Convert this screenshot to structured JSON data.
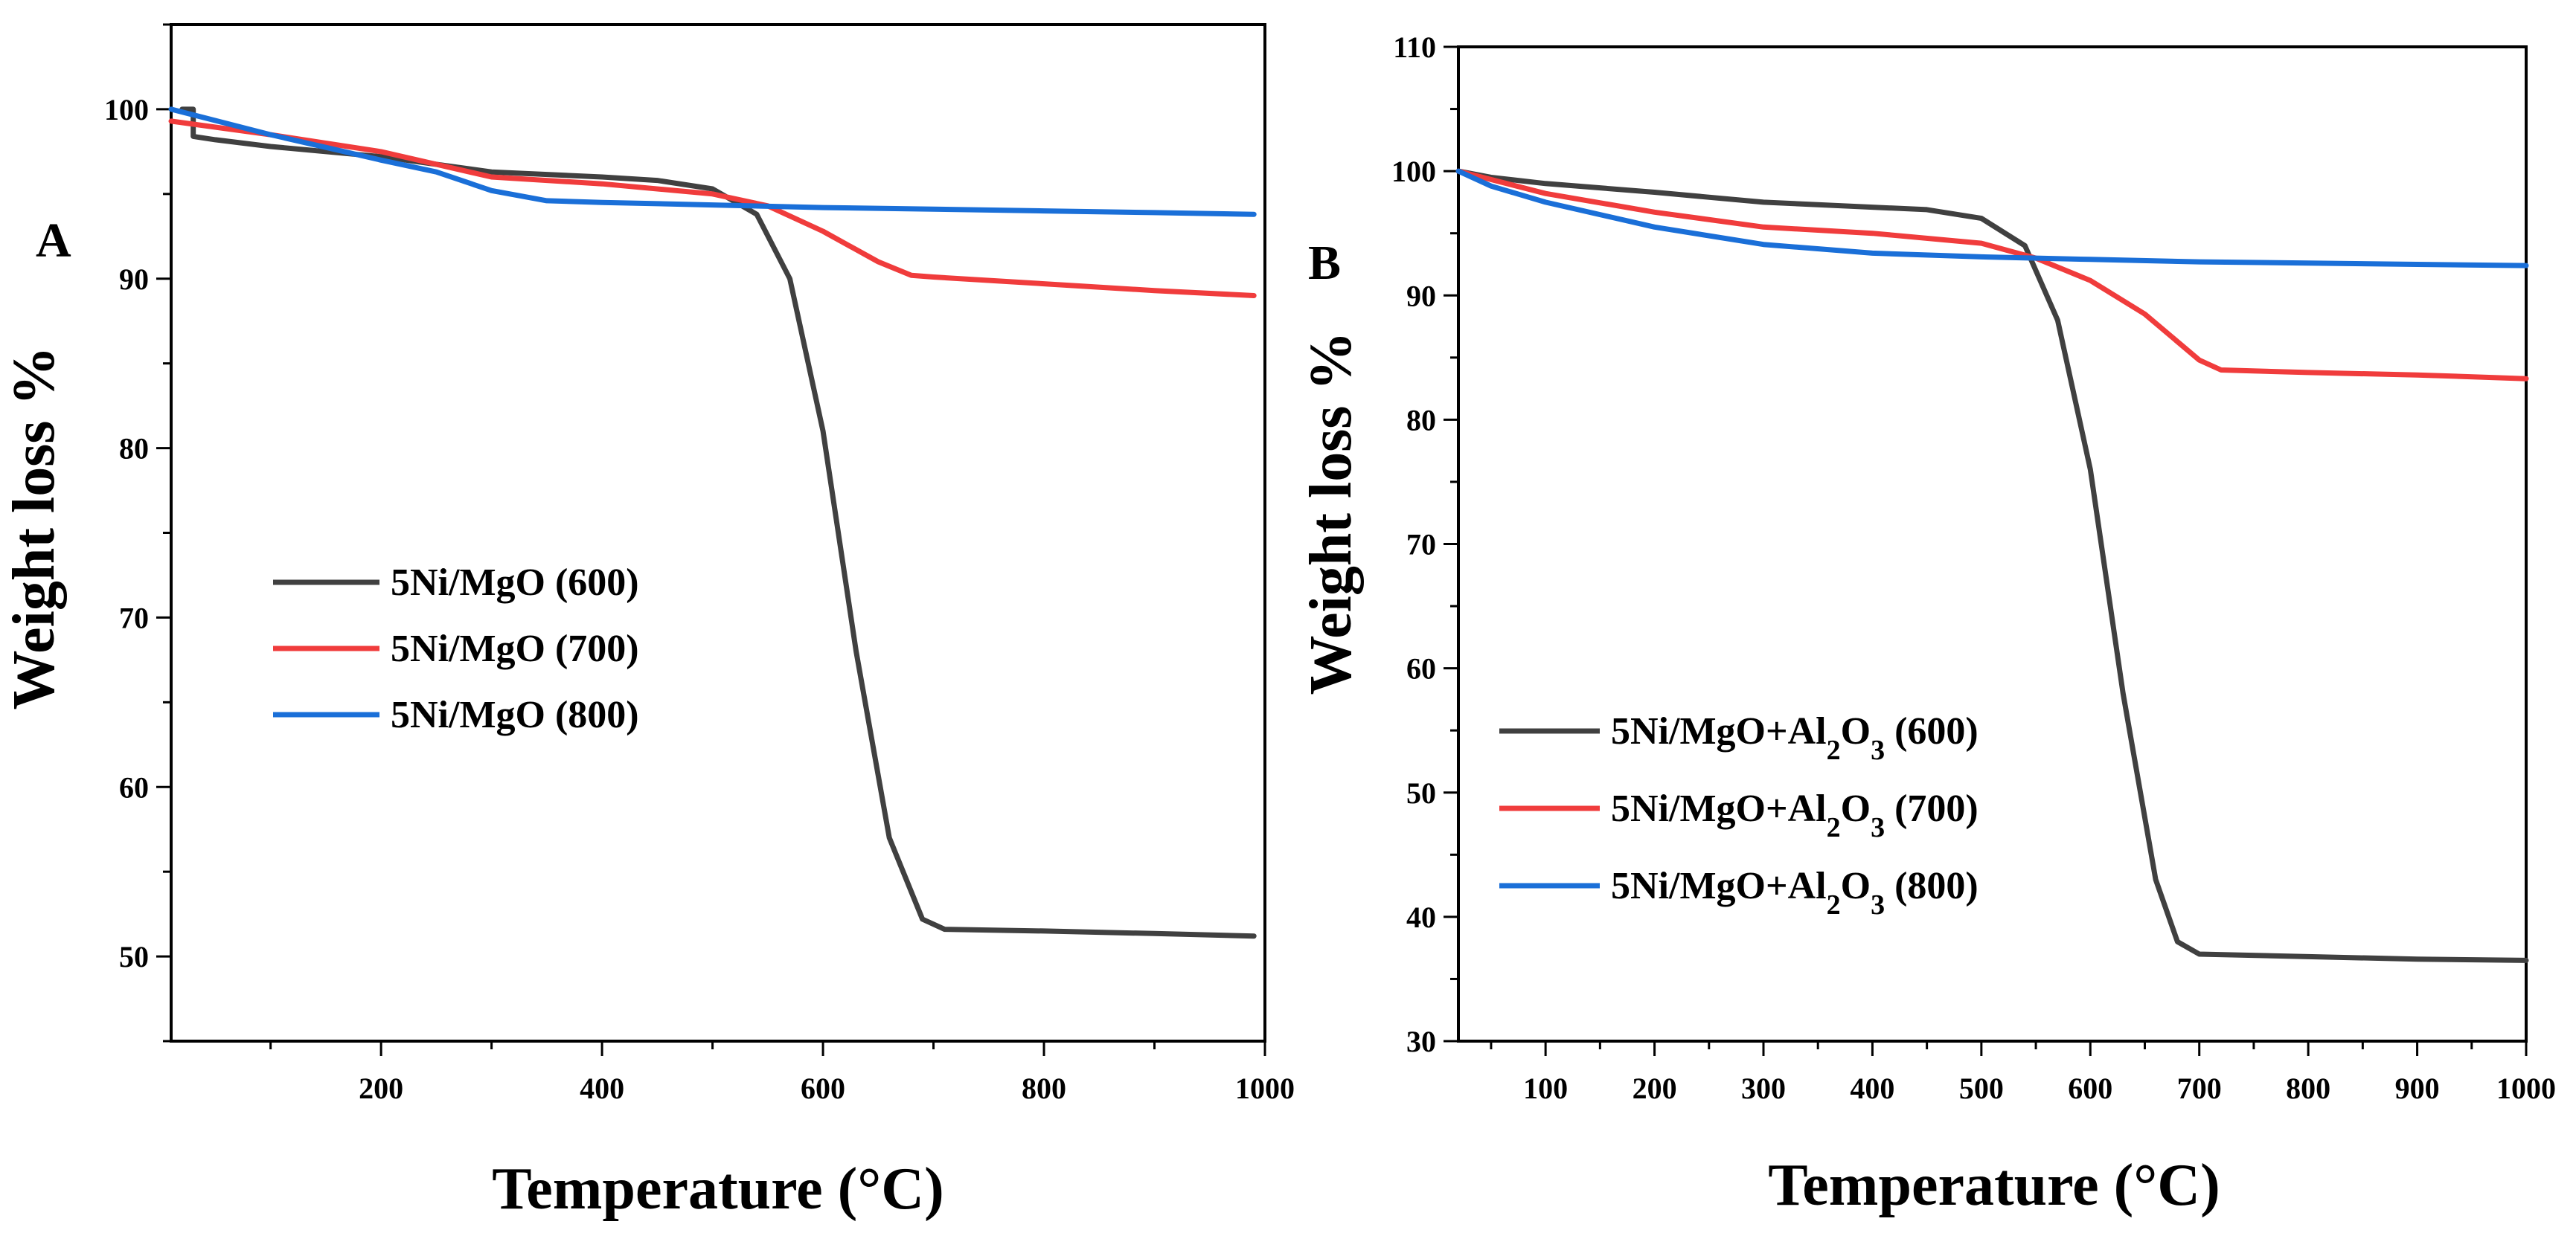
{
  "chart_data": [
    {
      "type": "line",
      "panel_label": "A",
      "xlabel": "Temperature (°C)",
      "ylabel": "Weight loss %",
      "xlim": [
        10,
        1000
      ],
      "ylim": [
        45,
        105
      ],
      "xticks": [
        200,
        400,
        600,
        800,
        1000
      ],
      "xtick_labels": [
        "200",
        "400",
        "600",
        "800",
        "1000"
      ],
      "yticks": [
        50,
        60,
        70,
        80,
        90,
        100
      ],
      "ytick_labels": [
        "50",
        "60",
        "70",
        "80",
        "90",
        "100"
      ],
      "legend_position": "center-left",
      "series": [
        {
          "name": "5Ni/MgO (600)",
          "label_parts": [
            {
              "t": "5Ni/MgO (600)"
            }
          ],
          "color": "#404040",
          "points": [
            [
              20,
              100
            ],
            [
              30,
              100
            ],
            [
              30,
              98.4
            ],
            [
              50,
              98.2
            ],
            [
              100,
              97.8
            ],
            [
              200,
              97.2
            ],
            [
              300,
              96.3
            ],
            [
              400,
              96.0
            ],
            [
              450,
              95.8
            ],
            [
              500,
              95.3
            ],
            [
              540,
              93.8
            ],
            [
              570,
              90.0
            ],
            [
              600,
              81.0
            ],
            [
              630,
              68.0
            ],
            [
              660,
              57.0
            ],
            [
              690,
              52.2
            ],
            [
              710,
              51.6
            ],
            [
              800,
              51.5
            ],
            [
              900,
              51.35
            ],
            [
              990,
              51.2
            ]
          ]
        },
        {
          "name": "5Ni/MgO (700)",
          "label_parts": [
            {
              "t": "5Ni/MgO (700)"
            }
          ],
          "color": "#f03c3c",
          "points": [
            [
              10,
              99.3
            ],
            [
              100,
              98.5
            ],
            [
              200,
              97.5
            ],
            [
              300,
              96.0
            ],
            [
              400,
              95.6
            ],
            [
              500,
              95.0
            ],
            [
              550,
              94.3
            ],
            [
              600,
              92.8
            ],
            [
              650,
              91.0
            ],
            [
              680,
              90.2
            ],
            [
              700,
              90.1
            ],
            [
              800,
              89.7
            ],
            [
              900,
              89.3
            ],
            [
              990,
              89.0
            ]
          ]
        },
        {
          "name": "5Ni/MgO (800)",
          "label_parts": [
            {
              "t": "5Ni/MgO (800)"
            }
          ],
          "color": "#1a6fd8",
          "points": [
            [
              10,
              100
            ],
            [
              100,
              98.5
            ],
            [
              200,
              97.0
            ],
            [
              250,
              96.3
            ],
            [
              300,
              95.2
            ],
            [
              350,
              94.6
            ],
            [
              400,
              94.5
            ],
            [
              500,
              94.35
            ],
            [
              600,
              94.2
            ],
            [
              700,
              94.1
            ],
            [
              800,
              94.0
            ],
            [
              900,
              93.9
            ],
            [
              990,
              93.8
            ]
          ]
        }
      ]
    },
    {
      "type": "line",
      "panel_label": "B",
      "xlabel": "Temperature (°C)",
      "ylabel": "Weight loss %",
      "xlim": [
        20,
        1000
      ],
      "ylim": [
        30,
        110
      ],
      "xticks": [
        100,
        200,
        300,
        400,
        500,
        600,
        700,
        800,
        900,
        1000
      ],
      "xtick_labels": [
        "100",
        "200",
        "300",
        "400",
        "500",
        "600",
        "700",
        "800",
        "900",
        "1000"
      ],
      "yticks": [
        30,
        40,
        50,
        60,
        70,
        80,
        90,
        100,
        110
      ],
      "ytick_labels": [
        "30",
        "40",
        "50",
        "60",
        "70",
        "80",
        "90",
        "100",
        "110"
      ],
      "legend_position": "bottom-left",
      "series": [
        {
          "name": "5Ni/MgO+Al2O3 (600)",
          "label_parts": [
            {
              "t": "5Ni/MgO+Al"
            },
            {
              "t": "2",
              "sub": true
            },
            {
              "t": "O"
            },
            {
              "t": "3",
              "sub": true
            },
            {
              "t": " (600)"
            }
          ],
          "color": "#404040",
          "points": [
            [
              20,
              100
            ],
            [
              50,
              99.5
            ],
            [
              100,
              99.0
            ],
            [
              200,
              98.3
            ],
            [
              300,
              97.5
            ],
            [
              400,
              97.1
            ],
            [
              450,
              96.9
            ],
            [
              500,
              96.2
            ],
            [
              540,
              94.0
            ],
            [
              570,
              88.0
            ],
            [
              600,
              76.0
            ],
            [
              630,
              58.0
            ],
            [
              660,
              43.0
            ],
            [
              680,
              38.0
            ],
            [
              700,
              37.0
            ],
            [
              800,
              36.8
            ],
            [
              900,
              36.6
            ],
            [
              1000,
              36.5
            ]
          ]
        },
        {
          "name": "5Ni/MgO+Al2O3 (700)",
          "label_parts": [
            {
              "t": "5Ni/MgO+Al"
            },
            {
              "t": "2",
              "sub": true
            },
            {
              "t": "O"
            },
            {
              "t": "3",
              "sub": true
            },
            {
              "t": " (700)"
            }
          ],
          "color": "#f03c3c",
          "points": [
            [
              20,
              100
            ],
            [
              100,
              98.2
            ],
            [
              200,
              96.7
            ],
            [
              300,
              95.5
            ],
            [
              400,
              95.0
            ],
            [
              500,
              94.2
            ],
            [
              550,
              93.0
            ],
            [
              600,
              91.2
            ],
            [
              650,
              88.5
            ],
            [
              700,
              84.8
            ],
            [
              720,
              84.0
            ],
            [
              800,
              83.8
            ],
            [
              900,
              83.6
            ],
            [
              1000,
              83.3
            ]
          ]
        },
        {
          "name": "5Ni/MgO+Al2O3 (800)",
          "label_parts": [
            {
              "t": "5Ni/MgO+Al"
            },
            {
              "t": "2",
              "sub": true
            },
            {
              "t": "O"
            },
            {
              "t": "3",
              "sub": true
            },
            {
              "t": " (800)"
            }
          ],
          "color": "#1a6fd8",
          "points": [
            [
              20,
              100
            ],
            [
              50,
              98.8
            ],
            [
              100,
              97.5
            ],
            [
              200,
              95.5
            ],
            [
              300,
              94.1
            ],
            [
              400,
              93.4
            ],
            [
              500,
              93.1
            ],
            [
              600,
              92.9
            ],
            [
              700,
              92.7
            ],
            [
              800,
              92.6
            ],
            [
              900,
              92.5
            ],
            [
              1000,
              92.4
            ]
          ]
        }
      ]
    }
  ]
}
